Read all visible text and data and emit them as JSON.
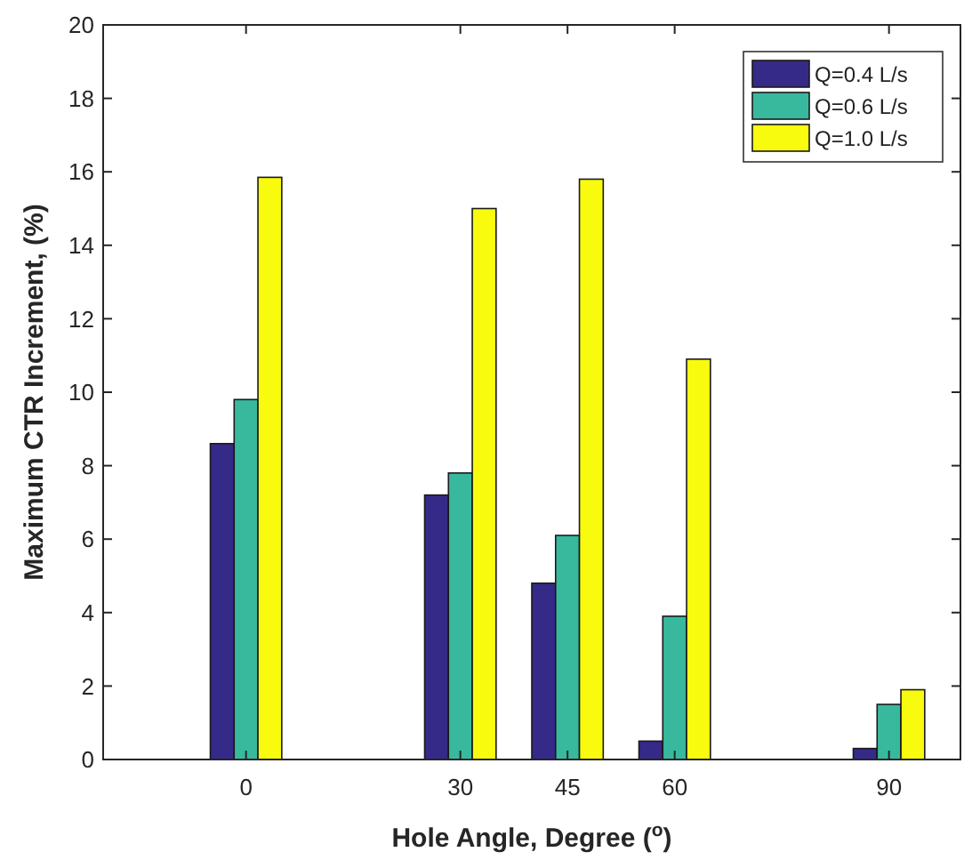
{
  "chart_data": {
    "type": "bar",
    "xlabel": "Hole Angle, Degree ($^{o}$)",
    "ylabel": "Maximum CTR Increment, (%)",
    "x": [
      0,
      30,
      45,
      60,
      90
    ],
    "series": [
      {
        "name": "Q=0.4 L/s",
        "color": "#352a87",
        "values": [
          8.6,
          7.2,
          4.8,
          0.5,
          0.3
        ]
      },
      {
        "name": "Q=0.6 L/s",
        "color": "#38b99e",
        "values": [
          9.8,
          7.8,
          6.1,
          3.9,
          1.5
        ]
      },
      {
        "name": "Q=1.0 L/s",
        "color": "#f9fb0e",
        "values": [
          15.85,
          15.0,
          15.8,
          10.9,
          1.9
        ]
      }
    ],
    "xlim": [
      -20,
      100
    ],
    "xticks": [
      0,
      30,
      45,
      60,
      90
    ],
    "ylim": [
      0,
      20
    ],
    "yticks": [
      0,
      2,
      4,
      6,
      8,
      10,
      12,
      14,
      16,
      18,
      20
    ],
    "legend": "top right",
    "grid": false
  }
}
